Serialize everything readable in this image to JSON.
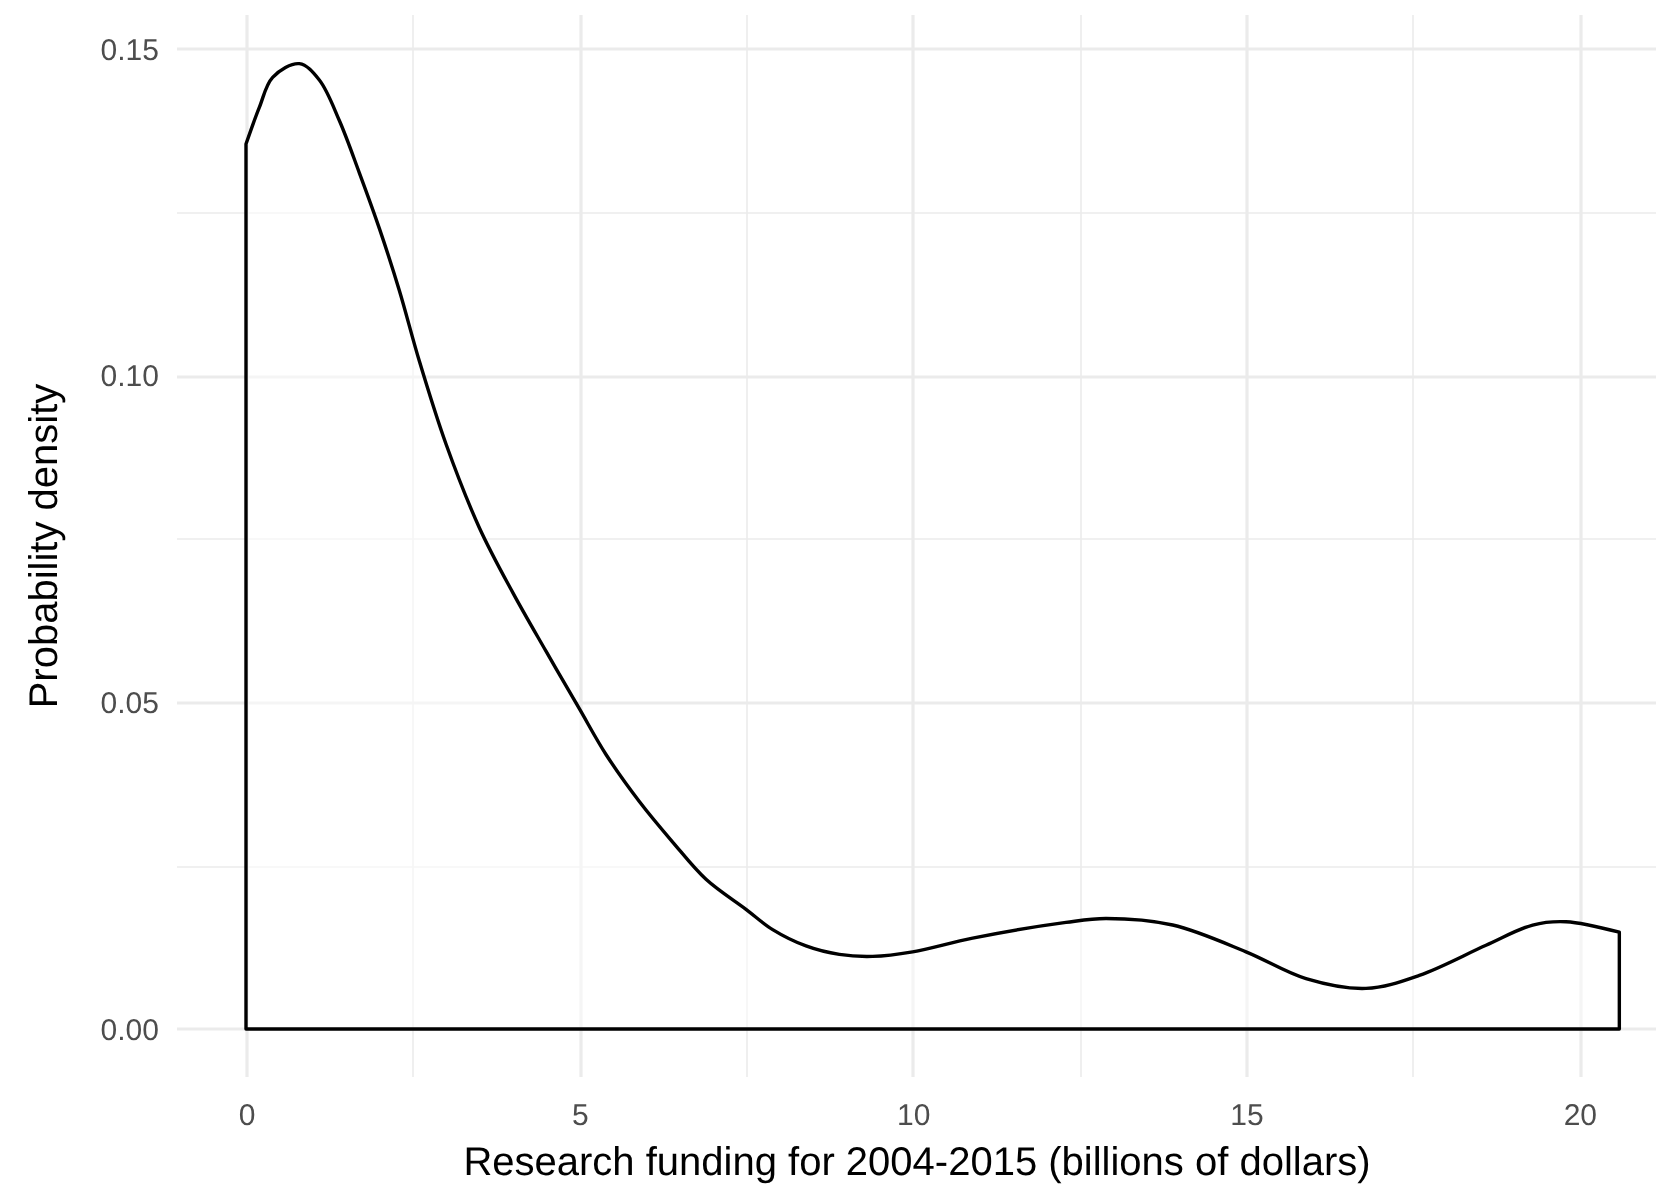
{
  "chart_data": {
    "type": "area",
    "xlabel": "Research funding for 2004-2015 (billions of dollars)",
    "ylabel": "Probability density",
    "x": [
      0,
      0.2,
      0.4,
      0.8,
      1.1,
      1.4,
      1.7,
      2.0,
      2.3,
      2.6,
      3.0,
      3.5,
      4.0,
      4.5,
      5.0,
      5.4,
      5.9,
      6.4,
      6.9,
      7.5,
      7.9,
      8.4,
      8.9,
      9.4,
      10.0,
      10.9,
      12.3,
      12.9,
      13.9,
      15.0,
      15.9,
      16.8,
      17.6,
      18.6,
      19.3,
      19.8,
      20.6
    ],
    "series": [
      {
        "color": "#000000",
        "values": [
          0.1354,
          0.141,
          0.1456,
          0.1477,
          0.1452,
          0.139,
          0.131,
          0.1225,
          0.113,
          0.1022,
          0.0895,
          0.0767,
          0.0668,
          0.0578,
          0.049,
          0.042,
          0.0348,
          0.0286,
          0.0229,
          0.0183,
          0.0152,
          0.0127,
          0.0114,
          0.0111,
          0.0118,
          0.0139,
          0.0163,
          0.0169,
          0.0159,
          0.0118,
          0.0077,
          0.0062,
          0.0082,
          0.0128,
          0.0159,
          0.0164,
          0.0148
        ]
      }
    ],
    "xlim": [
      -1.05,
      21.15
    ],
    "ylim": [
      -0.0072,
      0.1553
    ],
    "xticks": [
      0,
      {
        "value": 2.5,
        "label": null
      },
      5,
      {
        "value": 7.5,
        "label": null
      },
      10,
      {
        "value": 12.5,
        "label": null
      },
      15,
      {
        "value": 17.5,
        "label": null
      },
      20
    ],
    "yticks": [
      {
        "value": 0,
        "label": "0.00"
      },
      {
        "value": 0.025,
        "label": null
      },
      0.05,
      {
        "value": 0.075,
        "label": null
      },
      {
        "value": 0.1,
        "label": "0.10"
      },
      {
        "value": 0.125,
        "label": null
      },
      0.15
    ],
    "grid": true
  }
}
